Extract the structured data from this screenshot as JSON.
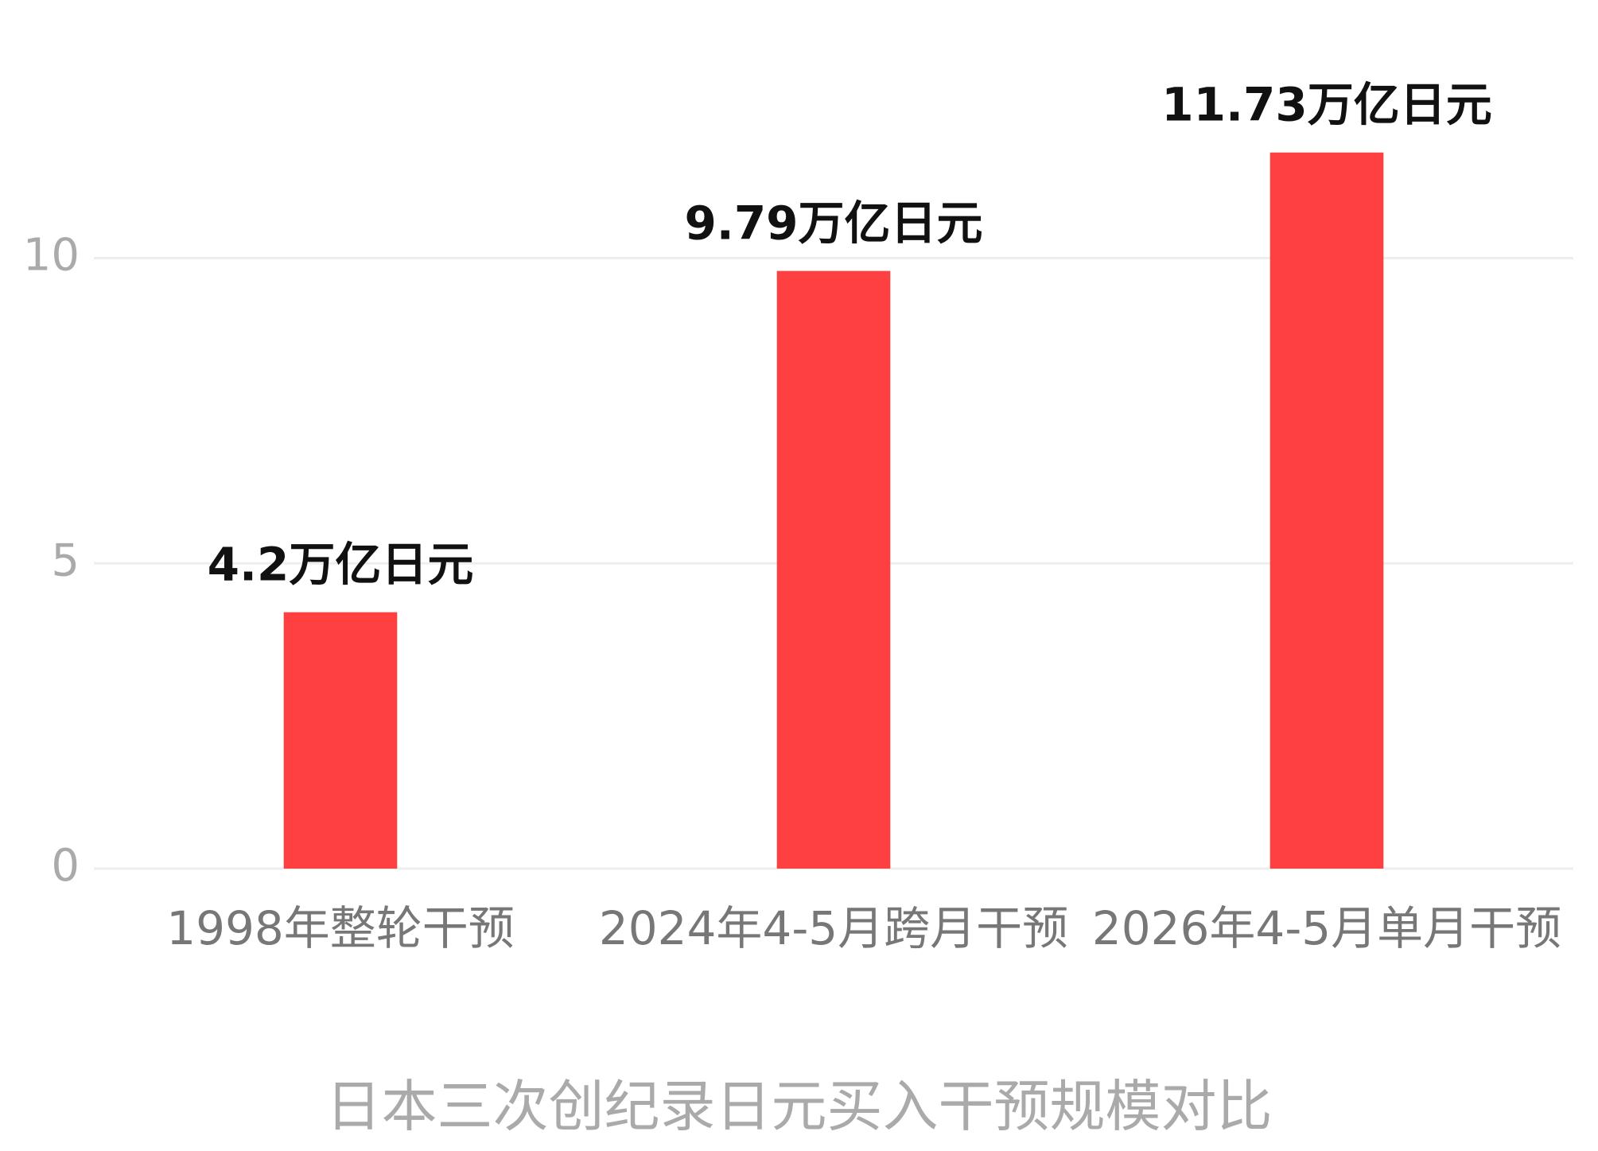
{
  "chart_data": {
    "type": "bar",
    "title": "日本三次创纪录日元买入干预规模对比",
    "categories": [
      "1998年整轮干预",
      "2024年4-5月跨月干预",
      "2026年4-5月单月干预"
    ],
    "values": [
      4.2,
      9.79,
      11.73
    ],
    "value_labels": [
      "4.2万亿日元",
      "9.79万亿日元",
      "11.73万亿日元"
    ],
    "color": "#ff4040",
    "ylim": [
      0,
      12
    ],
    "yticks": [
      0,
      5,
      10
    ],
    "grid": true
  }
}
